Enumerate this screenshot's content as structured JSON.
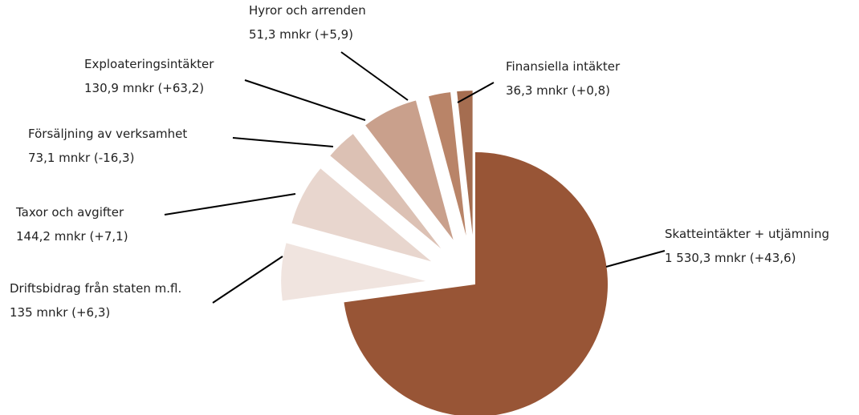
{
  "chart_data": {
    "type": "pie",
    "categories": [
      "Skatteintäkter + utjämning",
      "Driftsbidrag från staten m.fl.",
      "Taxor och avgifter",
      "Försäljning av verksamhet",
      "Exploateringsintäkter",
      "Hyror och arrenden",
      "Finansiella intäkter"
    ],
    "values": [
      1530.3,
      135,
      144.2,
      73.1,
      130.9,
      51.3,
      36.3
    ],
    "value_labels": [
      "1 530,3 mnkr (+43,6)",
      "135 mnkr (+6,3)",
      "144,2 mnkr (+7,1)",
      "73,1 mnkr (-16,3)",
      "130,9 mnkr (+63,2)",
      "51,3 mnkr (+5,9)",
      "36,3 mnkr (+0,8)"
    ],
    "colors": [
      "#985536",
      "#f0e4df",
      "#e8d6ce",
      "#dcc1b4",
      "#c9a08c",
      "#b98468",
      "#a56d50"
    ]
  }
}
